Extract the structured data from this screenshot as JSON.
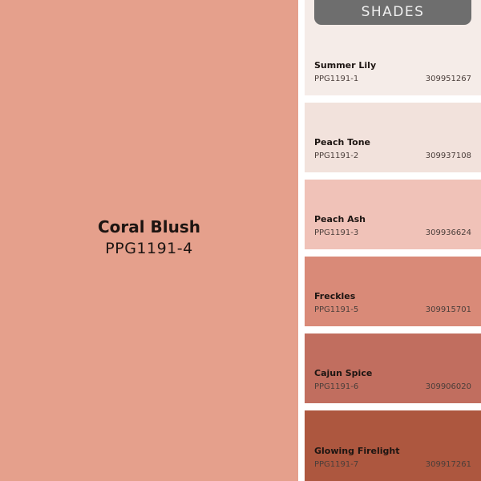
{
  "main": {
    "name": "Coral Blush",
    "code": "PPG1191-4",
    "color": "#e5a08c"
  },
  "badge": {
    "label": "SHADES"
  },
  "shades": [
    {
      "name": "Summer Lily",
      "code": "PPG1191-1",
      "number": "309951267",
      "color": "#f5ece8"
    },
    {
      "name": "Peach Tone",
      "code": "PPG1191-2",
      "number": "309937108",
      "color": "#f2e2dc"
    },
    {
      "name": "Peach Ash",
      "code": "PPG1191-3",
      "number": "309936624",
      "color": "#f0c2b8"
    },
    {
      "name": "Freckles",
      "code": "PPG1191-5",
      "number": "309915701",
      "color": "#d98a78"
    },
    {
      "name": "Cajun Spice",
      "code": "PPG1191-6",
      "number": "309906020",
      "color": "#c16e5f"
    },
    {
      "name": "Glowing Firelight",
      "code": "PPG1191-7",
      "number": "309917261",
      "color": "#ad573f"
    }
  ]
}
